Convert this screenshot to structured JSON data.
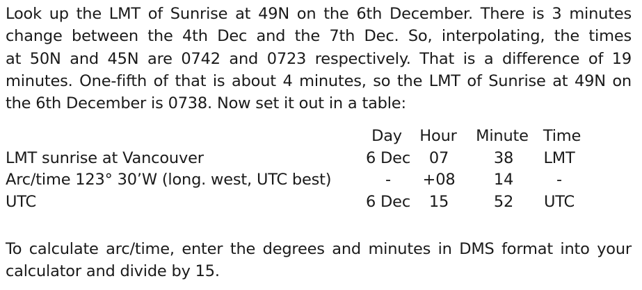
{
  "intro": {
    "lines": [
      "Look up the LMT of Sunrise at 49N on the 6th December.  There is 3 minutes",
      "change between the 4th Dec and the 7th Dec.  So, interpolating, the times",
      "at 50N and 45N are 0742 and 0723 respectively.  That is a difference of 19",
      "minutes.  One-fifth of that is about 4 minutes, so the LMT of Sunrise at 49N on",
      "the 6th December is 0738.  Now set it out in a table:"
    ]
  },
  "table": {
    "headers": {
      "day": "Day",
      "hour": "Hour",
      "minute": "Minute",
      "time": "Time"
    },
    "rows": [
      {
        "label": "LMT sunrise at Vancouver",
        "day": "6 Dec",
        "hour": "07",
        "minute": "38",
        "time": "LMT"
      },
      {
        "label": "Arc/time  123° 30’W (long. west, UTC best)",
        "day": "-",
        "hour": "+08",
        "minute": "14",
        "time": "-"
      },
      {
        "label": "UTC",
        "day": "6 Dec",
        "hour": "15",
        "minute": "52",
        "time": "UTC"
      }
    ]
  },
  "footer": {
    "lines": [
      "To calculate arc/time, enter the degrees and minutes in DMS format into your",
      "calculator and divide by 15."
    ]
  }
}
